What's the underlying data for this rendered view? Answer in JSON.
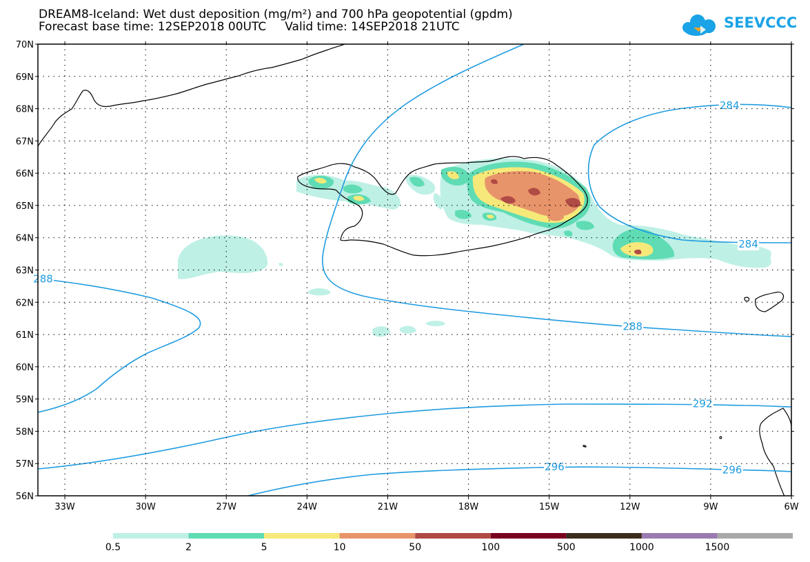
{
  "title": {
    "line1": "DREAM8-Iceland: Wet dust deposition (mg/m²) and 700 hPa geopotential (gpdm)",
    "line2": "Forecast base time: 12SEP2018 00UTC     Valid time: 14SEP2018 21UTC"
  },
  "logo": {
    "text": "SEEVCCC",
    "icon": "cloud-icon",
    "color": "#1aa3e6"
  },
  "map": {
    "lon_range": [
      -34,
      -6
    ],
    "lat_range": [
      56,
      70
    ],
    "lon_ticks": [
      {
        "value": -33,
        "label": "33W"
      },
      {
        "value": -30,
        "label": "30W"
      },
      {
        "value": -27,
        "label": "27W"
      },
      {
        "value": -24,
        "label": "24W"
      },
      {
        "value": -21,
        "label": "21W"
      },
      {
        "value": -18,
        "label": "18W"
      },
      {
        "value": -15,
        "label": "15W"
      },
      {
        "value": -12,
        "label": "12W"
      },
      {
        "value": -9,
        "label": "9W"
      },
      {
        "value": -6,
        "label": "6W"
      }
    ],
    "lat_ticks": [
      {
        "value": 70,
        "label": "70N"
      },
      {
        "value": 69,
        "label": "69N"
      },
      {
        "value": 68,
        "label": "68N"
      },
      {
        "value": 67,
        "label": "67N"
      },
      {
        "value": 66,
        "label": "66N"
      },
      {
        "value": 65,
        "label": "65N"
      },
      {
        "value": 64,
        "label": "64N"
      },
      {
        "value": 63,
        "label": "63N"
      },
      {
        "value": 62,
        "label": "62N"
      },
      {
        "value": 61,
        "label": "61N"
      },
      {
        "value": 60,
        "label": "60N"
      },
      {
        "value": 59,
        "label": "59N"
      },
      {
        "value": 58,
        "label": "58N"
      },
      {
        "value": 57,
        "label": "57N"
      },
      {
        "value": 56,
        "label": "56N"
      }
    ],
    "contour_color": "#1e9be0",
    "contour_labels": [
      {
        "text": "284",
        "lon": -8.3,
        "lat": 68.1
      },
      {
        "text": "284",
        "lon": -7.6,
        "lat": 63.8
      },
      {
        "text": "288",
        "lon": -11.9,
        "lat": 61.25
      },
      {
        "text": "288",
        "lon": -34.0,
        "lat": 62.72
      },
      {
        "text": "292",
        "lon": -9.3,
        "lat": 58.85
      },
      {
        "text": "296",
        "lon": -14.8,
        "lat": 56.9
      },
      {
        "text": "296",
        "lon": -8.2,
        "lat": 56.8
      }
    ]
  },
  "legend": {
    "colors": [
      "#bff0e6",
      "#5fdcb4",
      "#f6e97a",
      "#e8946a",
      "#b04a44",
      "#7a0020",
      "#3a2b1c",
      "#9a7ab0",
      "#a8a8a8"
    ],
    "labels": [
      "0.5",
      "2",
      "5",
      "10",
      "50",
      "100",
      "500",
      "1000",
      "1500"
    ]
  }
}
